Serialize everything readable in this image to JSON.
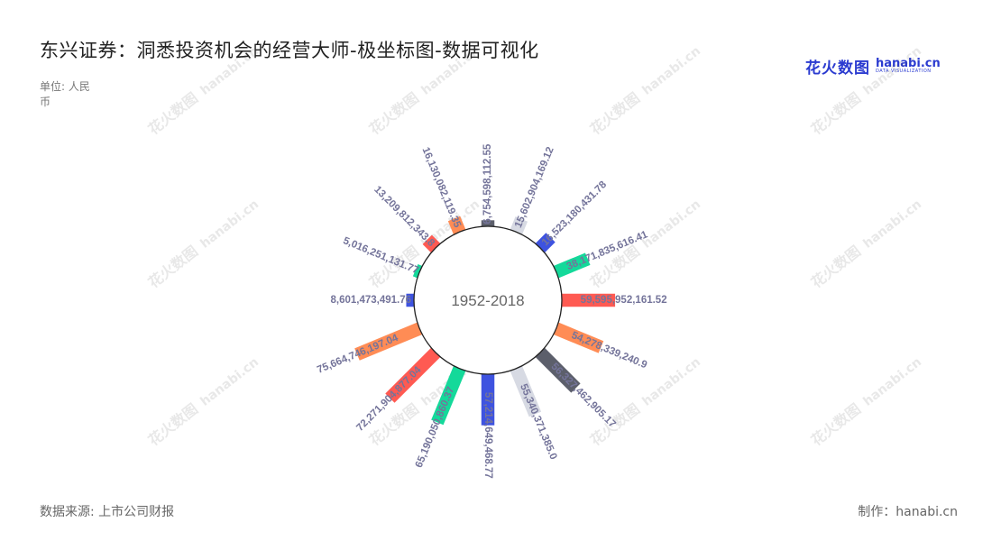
{
  "page": {
    "title": "东兴证券：洞悉投资机会的经营大师-极坐标图-数据可视化",
    "unit": "单位: 人民币",
    "source": "数据来源: 上市公司财报",
    "credit": "制作：hanabi.cn",
    "watermark_cn": "花火数图",
    "watermark_en": "hanabi.cn"
  },
  "logo": {
    "cn": "花火数图",
    "en": "hanabi.cn",
    "sub": "DATA VISUALIZATION"
  },
  "chart_data": {
    "type": "bar",
    "layout": "polar",
    "center_label": "1952-2018",
    "ylim": [
      0,
      75664746197.04
    ],
    "bars": [
      {
        "value": 6754598112.55,
        "label": "6,754,598,112.55",
        "color": "#5c5f6b"
      },
      {
        "value": 15602904169.12,
        "label": "15,602,904,169.12",
        "color": "#d7dae3"
      },
      {
        "value": 16523180431.78,
        "label": "16,523,180,431.78",
        "color": "#3e53e0"
      },
      {
        "value": 38171835616.41,
        "label": "38,171,835,616.41",
        "color": "#14d99a"
      },
      {
        "value": 59595952161.52,
        "label": "59,595,952,161.52",
        "color": "#ff5a52"
      },
      {
        "value": 54278339240.9,
        "label": "54,278,339,240.9",
        "color": "#ff8c55"
      },
      {
        "value": 56327462905.17,
        "label": "56,327,462,905.17",
        "color": "#5c5f6b"
      },
      {
        "value": 55340371385.0,
        "label": "55,340,371,385.0",
        "color": "#d7dae3"
      },
      {
        "value": 57214649468.77,
        "label": "57,214,649,468.77",
        "color": "#3e53e0"
      },
      {
        "value": 65190050860.37,
        "label": "65,190,050,860.37",
        "color": "#14d99a"
      },
      {
        "value": 72271904877.04,
        "label": "72,271,904,877.04",
        "color": "#ff5a52"
      },
      {
        "value": 75664746197.04,
        "label": "75,664,746,197.04",
        "color": "#ff8c55"
      },
      {
        "value": 8601473491.76,
        "label": "8,601,473,491.76",
        "color": "#3e53e0"
      },
      {
        "value": 5016251131.77,
        "label": "5,016,251,131.77",
        "color": "#14d99a"
      },
      {
        "value": 13209812343.8,
        "label": "13,209,812,343.8",
        "color": "#ff5a52"
      },
      {
        "value": 16130082119.35,
        "label": "16,130,082,119.35",
        "color": "#ff8c55"
      }
    ]
  }
}
